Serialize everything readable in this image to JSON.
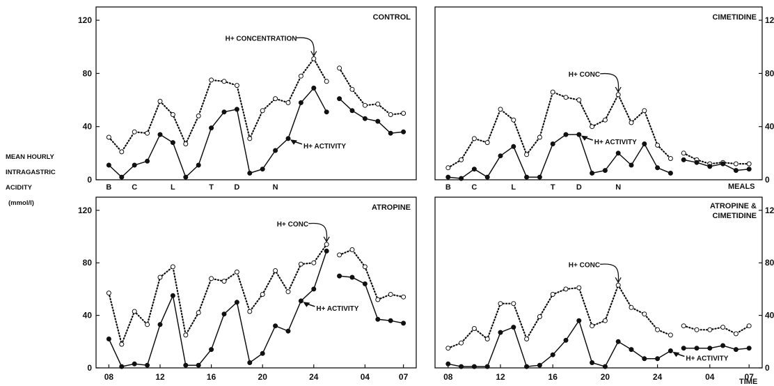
{
  "figure": {
    "ylabel_lines": [
      "MEAN HOURLY",
      "INTRAGASTRIC",
      "ACIDITY",
      "(mmol/l)"
    ],
    "meals_label": "MEALS",
    "time_label": "TIME",
    "meal_markers": [
      {
        "label": "B",
        "hour": 8
      },
      {
        "label": "C",
        "hour": 10
      },
      {
        "label": "L",
        "hour": 13
      },
      {
        "label": "T",
        "hour": 16
      },
      {
        "label": "D",
        "hour": 18
      },
      {
        "label": "N",
        "hour": 21
      }
    ]
  },
  "chart_data": [
    {
      "type": "line",
      "title": "CONTROL",
      "ylim": [
        0,
        130
      ],
      "yticks": [
        0,
        40,
        80,
        120
      ],
      "xticks": [],
      "annotations": {
        "concentration": "H+ CONCENTRATION",
        "activity": "H+ ACTIVITY"
      },
      "series": [
        {
          "name": "H+ CONCENTRATION",
          "style": "dotted-open",
          "x": [
            8,
            9,
            10,
            11,
            12,
            13,
            14,
            15,
            16,
            17,
            18,
            19,
            20,
            21,
            22,
            23,
            24,
            25,
            26,
            27,
            28,
            29,
            30,
            31
          ],
          "y": [
            32,
            21,
            36,
            35,
            59,
            49,
            27,
            48,
            75,
            74,
            71,
            31,
            52,
            61,
            58,
            78,
            91,
            74,
            84,
            68,
            56,
            57,
            49,
            50
          ]
        },
        {
          "name": "H+ ACTIVITY",
          "style": "solid-filled",
          "x": [
            8,
            9,
            10,
            11,
            12,
            13,
            14,
            15,
            16,
            17,
            18,
            19,
            20,
            21,
            22,
            23,
            24,
            25,
            26,
            27,
            28,
            29,
            30,
            31
          ],
          "y": [
            11,
            2,
            11,
            14,
            34,
            28,
            2,
            11,
            39,
            51,
            53,
            5,
            8,
            22,
            31,
            58,
            69,
            51,
            61,
            52,
            46,
            44,
            35,
            36
          ]
        }
      ]
    },
    {
      "type": "line",
      "title": "CIMETIDINE",
      "ylim": [
        0,
        130
      ],
      "yticks": [
        0,
        40,
        80,
        120
      ],
      "xticks": [],
      "annotations": {
        "concentration": "H+ CONC",
        "activity": "H+ ACTIVITY"
      },
      "series": [
        {
          "name": "H+ CONC",
          "style": "dotted-open",
          "x": [
            8,
            9,
            10,
            11,
            12,
            13,
            14,
            15,
            16,
            17,
            18,
            19,
            20,
            21,
            22,
            23,
            24,
            25,
            26,
            27,
            28,
            29,
            30,
            31
          ],
          "y": [
            9,
            15,
            31,
            28,
            53,
            45,
            19,
            32,
            66,
            62,
            60,
            40,
            45,
            64,
            43,
            52,
            26,
            16,
            20,
            15,
            12,
            13,
            12,
            12
          ]
        },
        {
          "name": "H+ ACTIVITY",
          "style": "solid-filled",
          "x": [
            8,
            9,
            10,
            11,
            12,
            13,
            14,
            15,
            16,
            17,
            18,
            19,
            20,
            21,
            22,
            23,
            24,
            25,
            26,
            27,
            28,
            29,
            30,
            31
          ],
          "y": [
            2,
            1,
            8,
            2,
            18,
            25,
            2,
            2,
            27,
            34,
            34,
            5,
            7,
            20,
            11,
            27,
            9,
            5,
            15,
            13,
            10,
            12,
            7,
            8
          ]
        }
      ]
    },
    {
      "type": "line",
      "title": "ATROPINE",
      "ylim": [
        0,
        130
      ],
      "yticks": [
        0,
        40,
        80,
        120
      ],
      "xticks": [
        "08",
        "12",
        "16",
        "20",
        "24",
        "04",
        "07"
      ],
      "annotations": {
        "concentration": "H+ CONC",
        "activity": "H+ ACTIVITY"
      },
      "series": [
        {
          "name": "H+ CONC",
          "style": "dotted-open",
          "x": [
            8,
            9,
            10,
            11,
            12,
            13,
            14,
            15,
            16,
            17,
            18,
            19,
            20,
            21,
            22,
            23,
            24,
            25,
            26,
            27,
            28,
            29,
            30,
            31
          ],
          "y": [
            57,
            18,
            43,
            33,
            69,
            77,
            25,
            42,
            68,
            66,
            73,
            43,
            56,
            74,
            58,
            79,
            80,
            94,
            86,
            90,
            77,
            52,
            56,
            54
          ]
        },
        {
          "name": "H+ ACTIVITY",
          "style": "solid-filled",
          "x": [
            8,
            9,
            10,
            11,
            12,
            13,
            14,
            15,
            16,
            17,
            18,
            19,
            20,
            21,
            22,
            23,
            24,
            25,
            26,
            27,
            28,
            29,
            30,
            31
          ],
          "y": [
            22,
            1,
            3,
            2,
            33,
            55,
            2,
            2,
            14,
            41,
            50,
            4,
            11,
            32,
            28,
            51,
            60,
            89,
            70,
            69,
            64,
            37,
            36,
            34
          ]
        }
      ]
    },
    {
      "type": "line",
      "title": "ATROPINE & CIMETIDINE",
      "ylim": [
        0,
        130
      ],
      "yticks": [
        0,
        40,
        80,
        120
      ],
      "xticks": [
        "08",
        "12",
        "16",
        "20",
        "24",
        "04",
        "07"
      ],
      "annotations": {
        "concentration": "H+ CONC",
        "activity": "H+ ACTIVITY"
      },
      "series": [
        {
          "name": "H+ CONC",
          "style": "dotted-open",
          "x": [
            8,
            9,
            10,
            11,
            12,
            13,
            14,
            15,
            16,
            17,
            18,
            19,
            20,
            21,
            22,
            23,
            24,
            25,
            26,
            27,
            28,
            29,
            30,
            31
          ],
          "y": [
            15,
            19,
            30,
            22,
            49,
            49,
            22,
            39,
            56,
            60,
            61,
            32,
            36,
            63,
            46,
            41,
            29,
            25,
            32,
            29,
            29,
            31,
            26,
            32
          ]
        },
        {
          "name": "H+ ACTIVITY",
          "style": "solid-filled",
          "x": [
            8,
            9,
            10,
            11,
            12,
            13,
            14,
            15,
            16,
            17,
            18,
            19,
            20,
            21,
            22,
            23,
            24,
            25,
            26,
            27,
            28,
            29,
            30,
            31
          ],
          "y": [
            3,
            1,
            1,
            1,
            27,
            31,
            1,
            2,
            10,
            21,
            36,
            4,
            1,
            20,
            14,
            7,
            7,
            13,
            15,
            15,
            15,
            17,
            14,
            15
          ]
        }
      ]
    }
  ]
}
